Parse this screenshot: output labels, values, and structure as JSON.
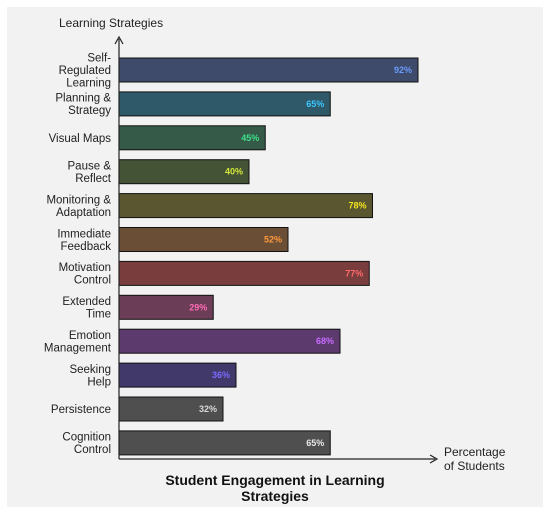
{
  "chart_data": {
    "type": "bar",
    "orientation": "horizontal",
    "title_lines": [
      "Student Engagement in Learning",
      "Strategies"
    ],
    "xlabel_lines": [
      "Percentage",
      "of Students"
    ],
    "ylabel": "Learning Strategies",
    "xlim": [
      0,
      100
    ],
    "grid": false,
    "categories": [
      [
        "Self-",
        "Regulated",
        "Learning"
      ],
      [
        "Planning &",
        "Strategy"
      ],
      [
        "Visual Maps"
      ],
      [
        "Pause &",
        "Reflect"
      ],
      [
        "Monitoring &",
        "Adaptation"
      ],
      [
        "Immediate",
        "Feedback"
      ],
      [
        "Motivation",
        "Control"
      ],
      [
        "Extended",
        "Time"
      ],
      [
        "Emotion",
        "Management"
      ],
      [
        "Seeking",
        "Help"
      ],
      [
        "Persistence"
      ],
      [
        "Cognition",
        "Control"
      ]
    ],
    "values": [
      92,
      65,
      45,
      40,
      78,
      52,
      77,
      29,
      68,
      36,
      32,
      65
    ],
    "value_labels": [
      "92%",
      "65%",
      "45%",
      "40%",
      "78%",
      "52%",
      "77%",
      "29%",
      "68%",
      "36%",
      "32%",
      "65%"
    ],
    "bar_colors": [
      "#3e4b6a",
      "#2f5968",
      "#355b48",
      "#445236",
      "#5a5630",
      "#6a4e36",
      "#7a3d3d",
      "#6b3d57",
      "#5c3a6e",
      "#40396a",
      "#4f4f4f",
      "#4f4f4f"
    ],
    "label_colors": [
      "#6b9bff",
      "#3ec6ff",
      "#3ee08a",
      "#d4e83a",
      "#f5e61e",
      "#ff9a3c",
      "#ff6b6b",
      "#ff6bb5",
      "#c86bff",
      "#7b6bff",
      "#d8d8d8",
      "#e8e8e8"
    ]
  }
}
